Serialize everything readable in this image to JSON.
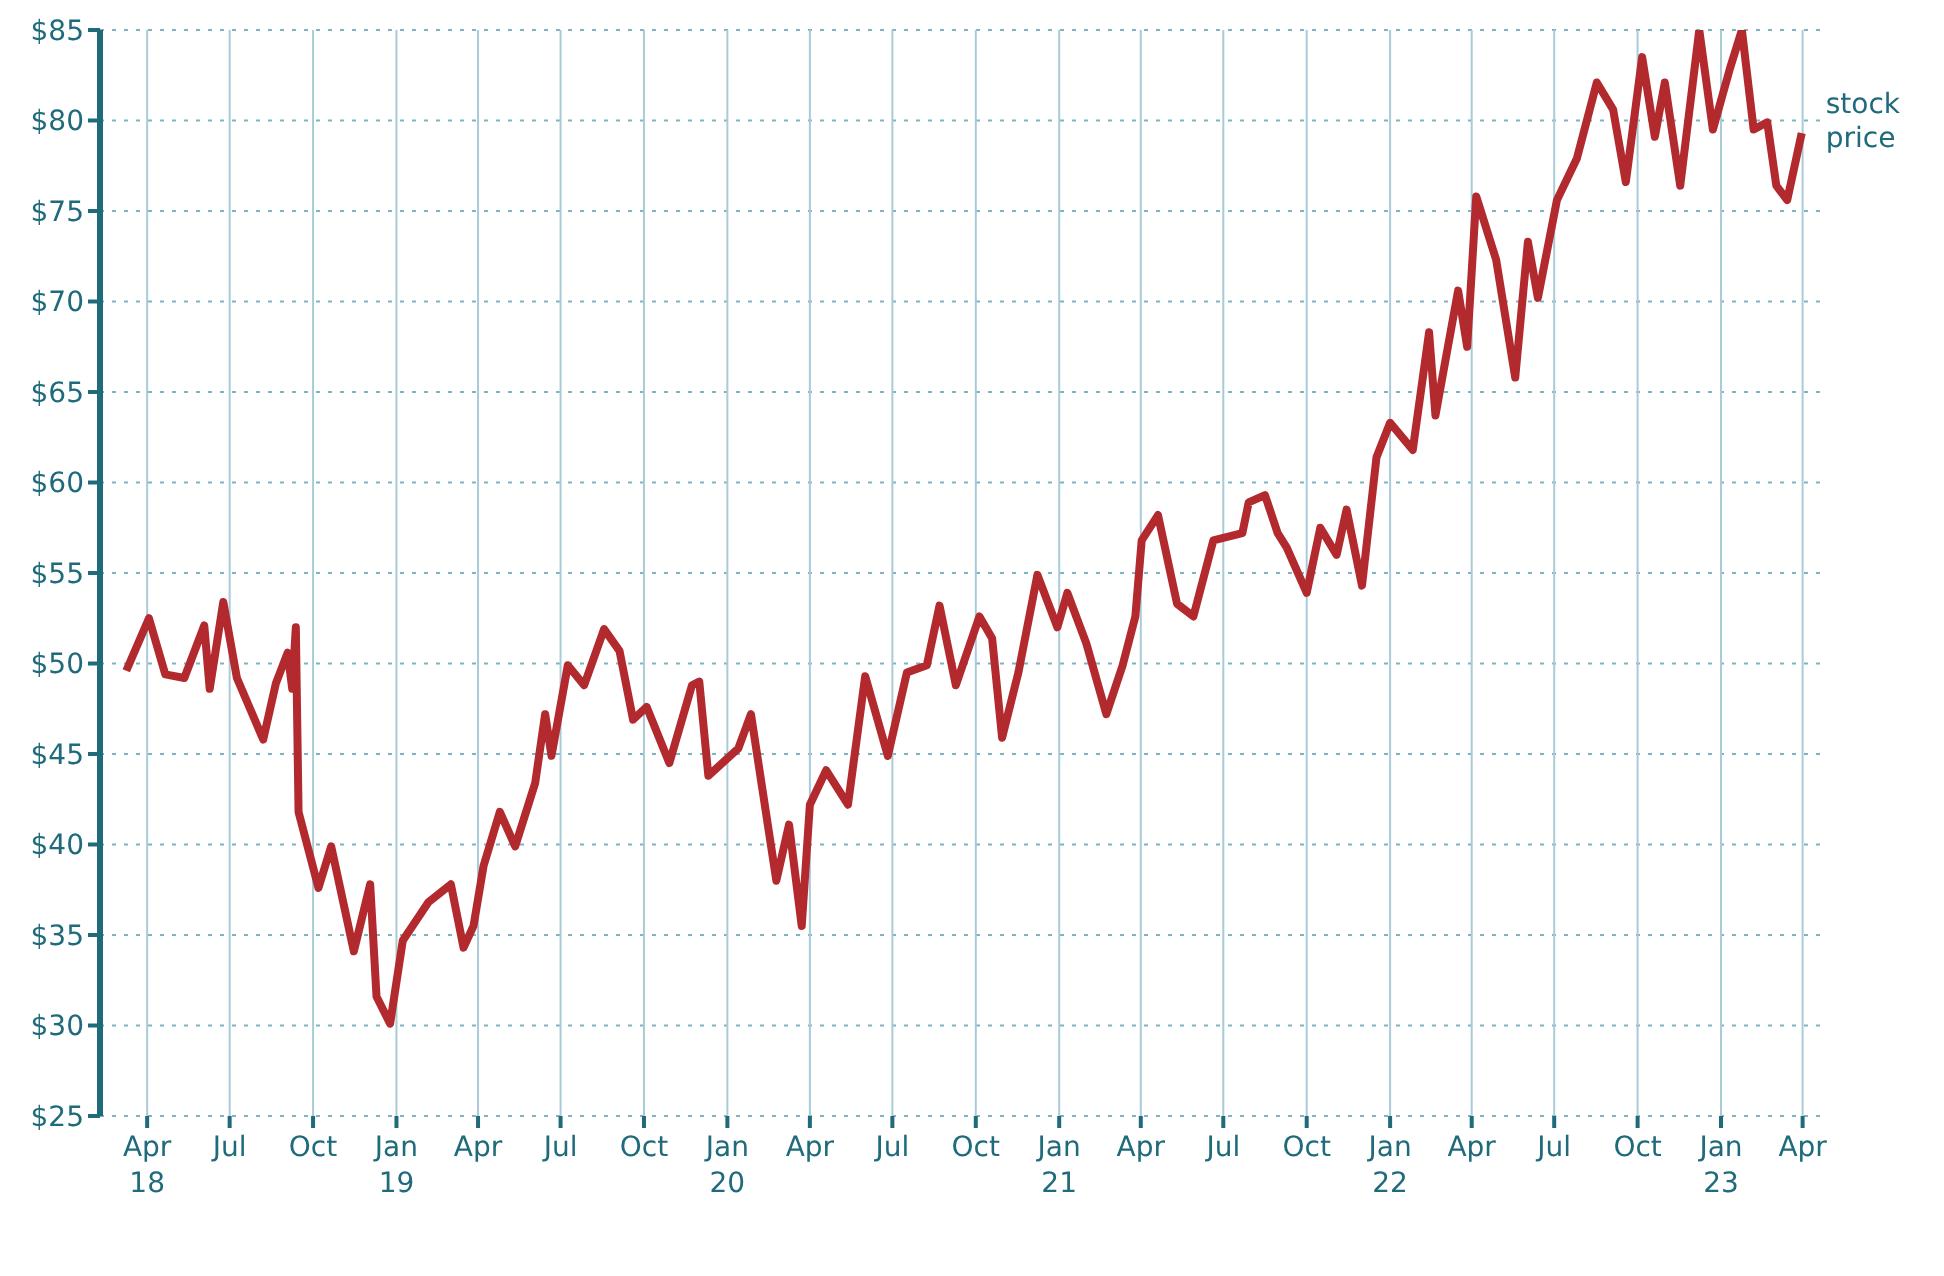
{
  "chart_data": {
    "type": "line",
    "x": [
      "2018-03-09",
      "2018-04-03",
      "2018-04-21",
      "2018-05-12",
      "2018-06-03",
      "2018-06-09",
      "2018-06-24",
      "2018-07-09",
      "2018-08-07",
      "2018-08-21",
      "2018-09-03",
      "2018-09-08",
      "2018-09-12",
      "2018-09-15",
      "2018-10-07",
      "2018-10-21",
      "2018-11-15",
      "2018-12-03",
      "2018-12-10",
      "2018-12-25",
      "2019-01-08",
      "2019-02-05",
      "2019-03-02",
      "2019-03-16",
      "2019-03-27",
      "2019-04-07",
      "2019-04-25",
      "2019-05-12",
      "2019-06-03",
      "2019-06-14",
      "2019-06-21",
      "2019-07-09",
      "2019-07-27",
      "2019-08-18",
      "2019-09-04",
      "2019-09-19",
      "2019-10-04",
      "2019-10-29",
      "2019-11-23",
      "2019-12-01",
      "2019-12-11",
      "2020-01-13",
      "2020-01-27",
      "2020-02-24",
      "2020-03-09",
      "2020-03-23",
      "2020-04-01",
      "2020-04-19",
      "2020-05-13",
      "2020-06-01",
      "2020-06-26",
      "2020-07-17",
      "2020-08-08",
      "2020-08-22",
      "2020-09-09",
      "2020-10-05",
      "2020-10-19",
      "2020-10-30",
      "2020-11-17",
      "2020-12-08",
      "2020-12-30",
      "2021-01-10",
      "2021-01-31",
      "2021-02-22",
      "2021-03-12",
      "2021-03-26",
      "2021-04-02",
      "2021-04-20",
      "2021-05-11",
      "2021-05-29",
      "2021-06-20",
      "2021-07-22",
      "2021-07-29",
      "2021-08-16",
      "2021-08-30",
      "2021-09-09",
      "2021-10-01",
      "2021-10-16",
      "2021-11-03",
      "2021-11-14",
      "2021-12-01",
      "2021-12-17",
      "2022-01-01",
      "2022-01-26",
      "2022-02-13",
      "2022-02-20",
      "2022-03-17",
      "2022-03-27",
      "2022-04-06",
      "2022-04-28",
      "2022-05-19",
      "2022-06-02",
      "2022-06-13",
      "2022-07-04",
      "2022-07-26",
      "2022-08-17",
      "2022-09-04",
      "2022-09-18",
      "2022-10-06",
      "2022-10-20",
      "2022-10-31",
      "2022-11-17",
      "2022-12-08",
      "2022-12-23",
      "2023-01-11",
      "2023-01-24",
      "2023-02-06",
      "2023-02-21",
      "2023-03-03",
      "2023-03-15",
      "2023-03-31"
    ],
    "series": [
      {
        "name": "stock price",
        "color": "#b22a2e",
        "values": [
          49.6,
          52.5,
          49.4,
          49.2,
          52.1,
          48.6,
          53.4,
          49.2,
          45.8,
          48.9,
          50.6,
          48.6,
          52.0,
          41.8,
          37.6,
          39.9,
          34.1,
          37.8,
          31.6,
          30.1,
          34.7,
          36.8,
          37.8,
          34.3,
          35.5,
          38.8,
          41.8,
          39.9,
          43.4,
          47.2,
          44.9,
          49.9,
          48.8,
          51.9,
          50.7,
          46.9,
          47.6,
          44.5,
          48.8,
          49.0,
          43.8,
          45.3,
          47.2,
          38.0,
          41.1,
          35.5,
          42.2,
          44.1,
          42.2,
          49.3,
          44.9,
          49.5,
          49.9,
          53.2,
          48.8,
          52.6,
          51.4,
          45.9,
          49.5,
          54.9,
          52.0,
          53.9,
          51.1,
          47.2,
          49.9,
          52.6,
          56.8,
          58.2,
          53.3,
          52.6,
          56.8,
          57.2,
          58.9,
          59.3,
          57.2,
          56.4,
          53.9,
          57.5,
          56.0,
          58.5,
          54.3,
          61.4,
          63.3,
          61.8,
          68.3,
          63.7,
          70.6,
          67.5,
          75.8,
          72.3,
          65.8,
          73.3,
          70.2,
          75.6,
          77.9,
          82.1,
          80.6,
          76.6,
          83.5,
          79.1,
          82.1,
          76.4,
          85,
          79.5,
          82.9,
          85,
          79.5,
          79.9,
          76.4,
          75.6,
          79.3
        ]
      }
    ],
    "xlim": [
      "2018-02-08",
      "2023-04-29"
    ],
    "xticks": [
      {
        "value": "2018-04-01",
        "label": "Apr 18"
      },
      {
        "value": "2018-07-01",
        "label": "Jul"
      },
      {
        "value": "2018-10-01",
        "label": "Oct"
      },
      {
        "value": "2019-01-01",
        "label": "Jan 19"
      },
      {
        "value": "2019-04-01",
        "label": "Apr"
      },
      {
        "value": "2019-07-01",
        "label": "Jul"
      },
      {
        "value": "2019-10-01",
        "label": "Oct"
      },
      {
        "value": "2020-01-01",
        "label": "Jan 20"
      },
      {
        "value": "2020-04-01",
        "label": "Apr"
      },
      {
        "value": "2020-07-01",
        "label": "Jul"
      },
      {
        "value": "2020-10-01",
        "label": "Oct"
      },
      {
        "value": "2021-01-01",
        "label": "Jan 21"
      },
      {
        "value": "2021-04-01",
        "label": "Apr"
      },
      {
        "value": "2021-07-01",
        "label": "Jul"
      },
      {
        "value": "2021-10-01",
        "label": "Oct"
      },
      {
        "value": "2022-01-01",
        "label": "Jan 22"
      },
      {
        "value": "2022-04-01",
        "label": "Apr"
      },
      {
        "value": "2022-07-01",
        "label": "Jul"
      },
      {
        "value": "2022-10-01",
        "label": "Oct"
      },
      {
        "value": "2023-01-01",
        "label": "Jan 23"
      },
      {
        "value": "2023-04-01",
        "label": "Apr"
      }
    ],
    "ylim": [
      25,
      85
    ],
    "yticks": [
      {
        "value": 25,
        "label": "$25"
      },
      {
        "value": 30,
        "label": "$30"
      },
      {
        "value": 35,
        "label": "$35"
      },
      {
        "value": 40,
        "label": "$40"
      },
      {
        "value": 45,
        "label": "$45"
      },
      {
        "value": 50,
        "label": "$50"
      },
      {
        "value": 55,
        "label": "$55"
      },
      {
        "value": 60,
        "label": "$60"
      },
      {
        "value": 65,
        "label": "$65"
      },
      {
        "value": 70,
        "label": "$70"
      },
      {
        "value": 75,
        "label": "$75"
      },
      {
        "value": 80,
        "label": "$80"
      },
      {
        "value": 85,
        "label": "$85"
      }
    ],
    "grid": true,
    "marker": "none",
    "line_style": "solid",
    "legend": false
  }
}
